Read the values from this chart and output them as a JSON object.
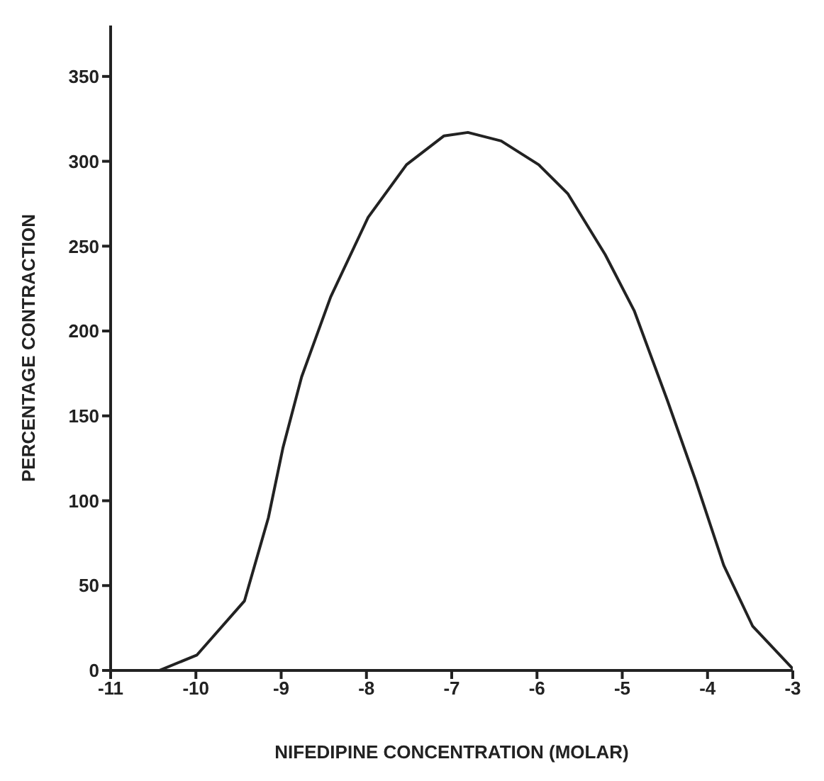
{
  "chart_data": {
    "type": "line",
    "xlabel": "NIFEDIPINE CONCENTRATION (MOLAR)",
    "ylabel": "PERCENTAGE CONTRACTION",
    "x": [
      -11,
      -10.43,
      -9.99,
      -9.43,
      -9.15,
      -8.98,
      -8.76,
      -8.42,
      -7.98,
      -7.53,
      -7.09,
      -6.81,
      -6.42,
      -5.98,
      -5.64,
      -5.2,
      -4.86,
      -4.47,
      -4.14,
      -3.81,
      -3.47,
      -3
    ],
    "series": [
      {
        "color": "#222222",
        "values": [
          0,
          0,
          9,
          41,
          90,
          131,
          173,
          220,
          267,
          298,
          315,
          317,
          312,
          298,
          281,
          245,
          212,
          159,
          112,
          62,
          26,
          1
        ]
      }
    ],
    "xlim": [
      -11,
      -3
    ],
    "xticks": [
      -11,
      -10,
      -9,
      -8,
      -7,
      -6,
      -5,
      -4,
      -3
    ],
    "ylim": [
      0,
      380
    ],
    "yticks": [
      0,
      50,
      100,
      150,
      200,
      250,
      300,
      350
    ],
    "grid": false,
    "legend": false,
    "marker": "none",
    "line_style": "solid"
  }
}
